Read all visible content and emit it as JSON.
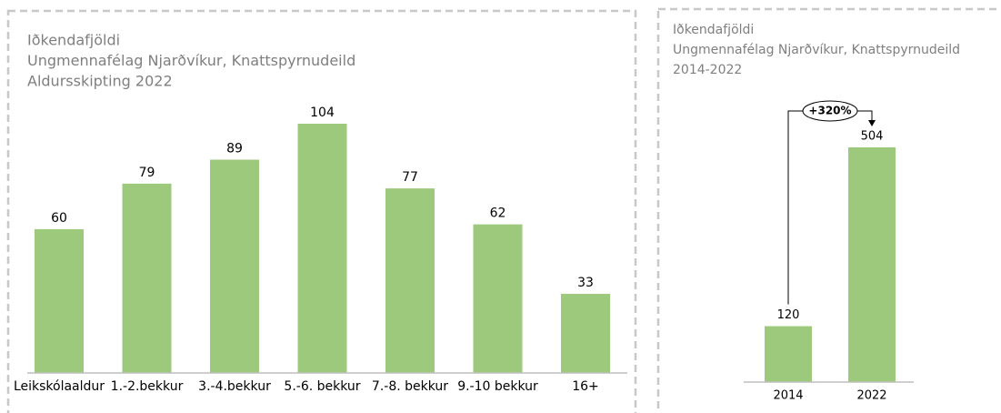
{
  "chart_data": [
    {
      "type": "bar",
      "title_lines": [
        "Iðkendafjöldi",
        "Ungmennafélag Njarðvíkur, Knattspyrnudeild",
        "Aldursskipting 2022"
      ],
      "categories": [
        "Leikskólaaldur",
        "1.-2.bekkur",
        "3.-4.bekkur",
        "5.-6. bekkur",
        "7.-8. bekkur",
        "9.-10 bekkur",
        "16+"
      ],
      "values": [
        60,
        79,
        89,
        104,
        77,
        62,
        33
      ],
      "color": "#9dc97c"
    },
    {
      "type": "bar",
      "title_lines": [
        "Iðkendafjöldi",
        "Ungmennafélag Njarðvíkur, Knattspyrnudeild",
        "2014-2022"
      ],
      "categories": [
        "2014",
        "2022"
      ],
      "values": [
        120,
        504
      ],
      "color": "#9dc97c",
      "annotation": "+320%"
    }
  ]
}
